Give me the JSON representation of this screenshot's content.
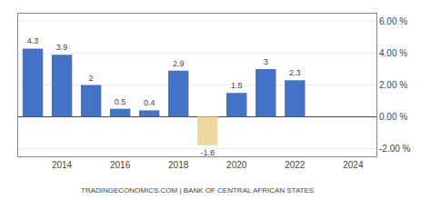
{
  "chart_data": {
    "type": "bar",
    "x": [
      2013,
      2014,
      2015,
      2016,
      2017,
      2018,
      2019,
      2020,
      2021,
      2022
    ],
    "values": [
      4.3,
      3.9,
      2,
      0.5,
      0.4,
      2.9,
      -1.8,
      1.5,
      3,
      2.3
    ],
    "colors": [
      "#4472c4",
      "#4472c4",
      "#4472c4",
      "#4472c4",
      "#4472c4",
      "#4472c4",
      "#f0d9a0",
      "#4472c4",
      "#4472c4",
      "#4472c4"
    ],
    "data_labels": true,
    "xlim": [
      2012.5,
      2024.8
    ],
    "xticks": [
      2014,
      2016,
      2018,
      2020,
      2022,
      2024
    ],
    "ylim": [
      -2.5,
      6.5
    ],
    "yticks": [
      {
        "value": -2,
        "label": "-2.00 %"
      },
      {
        "value": 0,
        "label": "0.00 %"
      },
      {
        "value": 2,
        "label": "2.00 %"
      },
      {
        "value": 4,
        "label": "4.00 %"
      },
      {
        "value": 6,
        "label": "6.00 %"
      }
    ],
    "grid": true,
    "annotations": [
      {
        "text": "TRADINGECONOMICS.COM | BANK OF CENTRAL AFRICAN STATES"
      }
    ]
  }
}
